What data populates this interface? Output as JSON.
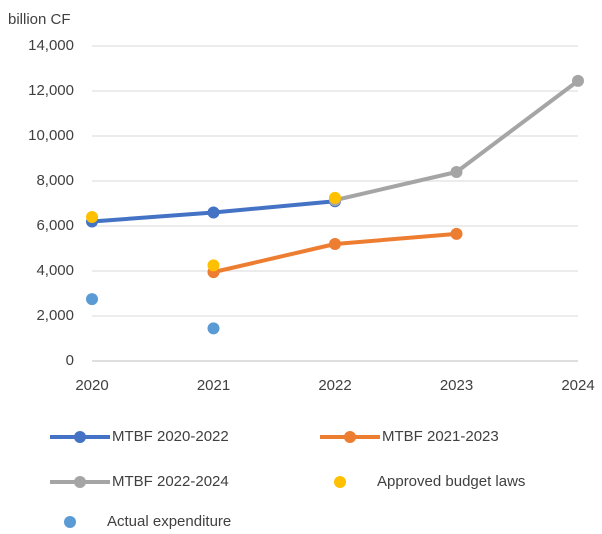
{
  "chart_data": {
    "type": "line",
    "ylabel": "billion CF",
    "x": [
      2020,
      2021,
      2022,
      2023,
      2024
    ],
    "xlim": [
      2020,
      2024
    ],
    "xticks": [
      2020,
      2021,
      2022,
      2023,
      2024
    ],
    "ylim": [
      0,
      14000
    ],
    "yticks": [
      0,
      {
        "value": 2000,
        "label": "2,000"
      },
      {
        "value": 4000,
        "label": "4,000"
      },
      {
        "value": 6000,
        "label": "6,000"
      },
      {
        "value": 8000,
        "label": "8,000"
      },
      {
        "value": 10000,
        "label": "10,000"
      },
      {
        "value": 12000,
        "label": "12,000"
      },
      {
        "value": 14000,
        "label": "14,000"
      }
    ],
    "grid": true,
    "legend": "bottom",
    "series": [
      {
        "name": "MTBF 2020-2022",
        "color": "#4472c4",
        "mode": "lines+markers",
        "values": [
          6200,
          6600,
          7100,
          null,
          null
        ]
      },
      {
        "name": "MTBF 2021-2023",
        "color": "#ed7d31",
        "mode": "lines+markers",
        "values": [
          null,
          3950,
          5200,
          5650,
          null
        ]
      },
      {
        "name": "MTBF 2022-2024",
        "color": "#a5a5a5",
        "mode": "lines+markers",
        "values": [
          null,
          null,
          7150,
          8400,
          12450
        ]
      },
      {
        "name": "Approved budget laws",
        "color": "#ffc000",
        "mode": "markers",
        "values": [
          6400,
          4250,
          7250,
          null,
          null
        ]
      },
      {
        "name": "Actual expenditure",
        "color": "#5b9bd5",
        "mode": "markers",
        "values": [
          2750,
          1450,
          null,
          null,
          null
        ]
      }
    ]
  }
}
